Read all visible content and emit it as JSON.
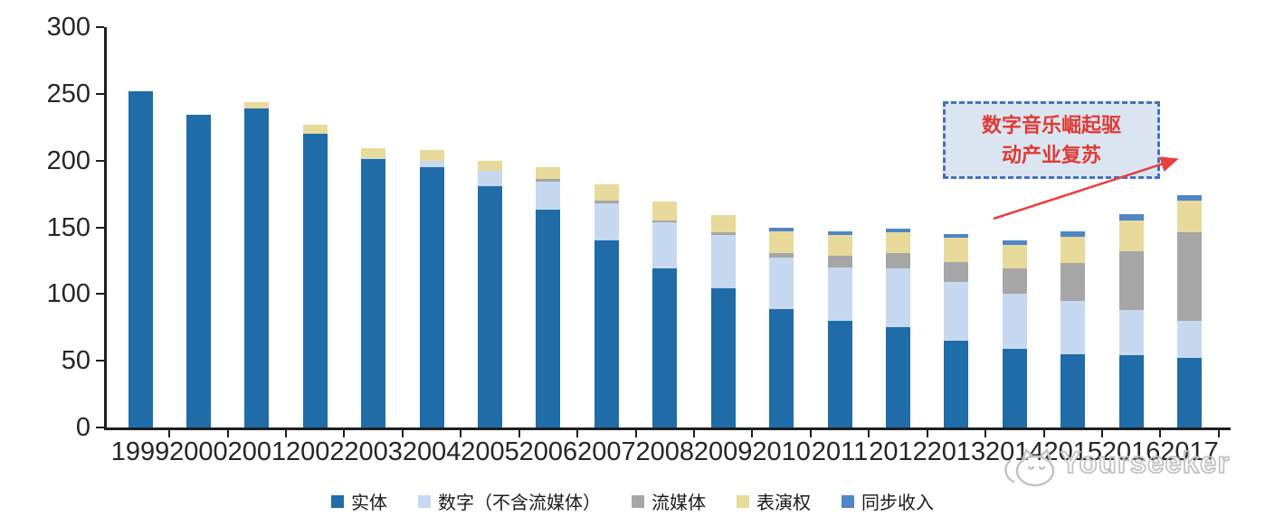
{
  "chart_data": {
    "type": "bar",
    "stacked": true,
    "categories": [
      "1999",
      "2000",
      "2001",
      "2002",
      "2003",
      "2004",
      "2005",
      "2006",
      "2007",
      "2008",
      "2009",
      "2010",
      "2011",
      "2012",
      "2013",
      "2014",
      "2015",
      "2016",
      "2017"
    ],
    "series": [
      {
        "name": "实体",
        "color": "#1F6CA8",
        "values": [
          252,
          234,
          239,
          220,
          201,
          195,
          181,
          163,
          140,
          119,
          104,
          89,
          80,
          75,
          65,
          59,
          55,
          54,
          52
        ]
      },
      {
        "name": "数字（不含流媒体）",
        "color": "#C6D9F0",
        "values": [
          0,
          0,
          0,
          0,
          1,
          5,
          11,
          21,
          28,
          35,
          40,
          38,
          40,
          44,
          44,
          41,
          40,
          34,
          28
        ]
      },
      {
        "name": "流媒体",
        "color": "#A6A6A6",
        "values": [
          0,
          0,
          0,
          0,
          0,
          0,
          0,
          2,
          2,
          1,
          2,
          4,
          9,
          12,
          15,
          19,
          28,
          44,
          66
        ]
      },
      {
        "name": "表演权",
        "color": "#E8DA9B",
        "values": [
          0,
          0,
          5,
          7,
          7,
          8,
          8,
          9,
          12,
          14,
          13,
          16,
          15,
          15,
          18,
          18,
          20,
          23,
          24
        ]
      },
      {
        "name": "同步收入",
        "color": "#4E86C6",
        "values": [
          0,
          0,
          0,
          0,
          0,
          0,
          0,
          0,
          0,
          0,
          0,
          3,
          3,
          3,
          3,
          3,
          4,
          5,
          4
        ]
      }
    ],
    "ylim": [
      0,
      300
    ],
    "y_ticks": [
      0,
      50,
      100,
      150,
      200,
      250,
      300
    ],
    "grid": false,
    "legend_position": "bottom",
    "axis_color": "#1f1f1f",
    "label_color": "#262626"
  },
  "annotation": {
    "line1": "数字音乐崛起驱",
    "line2": "动产业复苏",
    "border_color": "#4472C4",
    "fill_color": "#DBE5F1",
    "text_color": "#E03A34",
    "arrow_color": "#E84040"
  },
  "watermark": {
    "text": "Yourseeker",
    "color": "#c2c2c2"
  }
}
